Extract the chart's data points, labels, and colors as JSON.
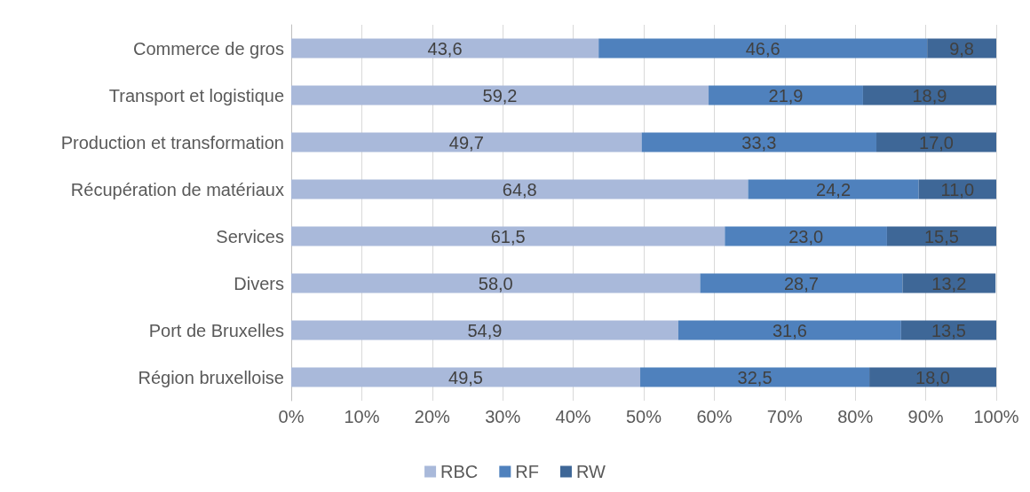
{
  "chart_data": {
    "type": "bar",
    "orientation": "horizontal",
    "stacked": true,
    "categories": [
      "Commerce de gros",
      "Transport et logistique",
      "Production et transformation",
      "Récupération de matériaux",
      "Services",
      "Divers",
      "Port de Bruxelles",
      "Région bruxelloise"
    ],
    "series": [
      {
        "name": "RBC",
        "color": "#a9b9da",
        "values": [
          43.6,
          59.2,
          49.7,
          64.8,
          61.5,
          58.0,
          54.9,
          49.5
        ],
        "value_labels": [
          "43,6",
          "59,2",
          "49,7",
          "64,8",
          "61,5",
          "58,0",
          "54,9",
          "49,5"
        ]
      },
      {
        "name": "RF",
        "color": "#4f81bd",
        "values": [
          46.6,
          21.9,
          33.3,
          24.2,
          23.0,
          28.7,
          31.6,
          32.5
        ],
        "value_labels": [
          "46,6",
          "21,9",
          "33,3",
          "24,2",
          "23,0",
          "28,7",
          "31,6",
          "32,5"
        ]
      },
      {
        "name": "RW",
        "color": "#3e6797",
        "values": [
          9.8,
          18.9,
          17.0,
          11.0,
          15.5,
          13.2,
          13.5,
          18.0
        ],
        "value_labels": [
          "9,8",
          "18,9",
          "17,0",
          "11,0",
          "15,5",
          "13,2",
          "13,5",
          "18,0"
        ]
      }
    ],
    "xlim": [
      0,
      100
    ],
    "xticks": [
      {
        "value": 0,
        "label": "0%"
      },
      {
        "value": 10,
        "label": "10%"
      },
      {
        "value": 20,
        "label": "20%"
      },
      {
        "value": 30,
        "label": "30%"
      },
      {
        "value": 40,
        "label": "40%"
      },
      {
        "value": 50,
        "label": "50%"
      },
      {
        "value": 60,
        "label": "60%"
      },
      {
        "value": 70,
        "label": "70%"
      },
      {
        "value": 80,
        "label": "80%"
      },
      {
        "value": 90,
        "label": "90%"
      },
      {
        "value": 100,
        "label": "100%"
      }
    ],
    "grid": "x",
    "legend": "bottom"
  }
}
